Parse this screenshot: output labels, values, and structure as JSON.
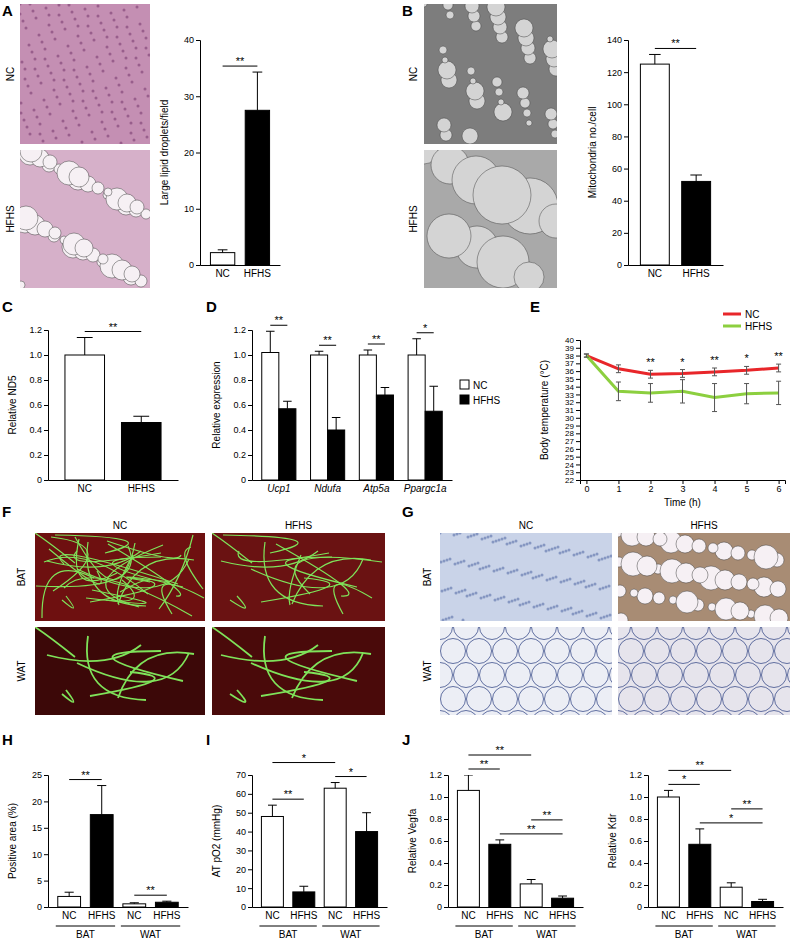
{
  "chart_data": [
    {
      "panel": "A",
      "type": "bar",
      "ylabel": "Large lipid droplets/field",
      "categories": [
        "NC",
        "HFHS"
      ],
      "values": [
        2.2,
        27.5
      ],
      "errors": [
        0.5,
        6.8
      ],
      "colors": [
        "#ffffff",
        "#000000"
      ],
      "ylim": [
        0,
        40
      ],
      "yticks": [
        0,
        10,
        20,
        30,
        40
      ],
      "annotations": [
        {
          "text": "**",
          "from": 0,
          "to": 1
        }
      ]
    },
    {
      "panel": "B",
      "type": "bar",
      "ylabel": "Mitochondria no./cell",
      "categories": [
        "NC",
        "HFHS"
      ],
      "values": [
        125,
        52
      ],
      "errors": [
        6,
        4
      ],
      "colors": [
        "#ffffff",
        "#000000"
      ],
      "ylim": [
        0,
        140
      ],
      "yticks": [
        0,
        20,
        40,
        60,
        80,
        100,
        120,
        140
      ],
      "annotations": [
        {
          "text": "**",
          "from": 0,
          "to": 1
        }
      ]
    },
    {
      "panel": "C",
      "type": "bar",
      "ylabel": "Relative ND5",
      "categories": [
        "NC",
        "HFHS"
      ],
      "values": [
        1.0,
        0.46
      ],
      "errors": [
        0.14,
        0.05
      ],
      "colors": [
        "#ffffff",
        "#000000"
      ],
      "ylim": [
        0,
        1.2
      ],
      "yticks": [
        0,
        0.2,
        0.4,
        0.6,
        0.8,
        {
          "value": 1,
          "label": "1.0"
        },
        1.2
      ],
      "annotations": [
        {
          "text": "**",
          "from": 0,
          "to": 1
        }
      ]
    },
    {
      "panel": "D",
      "type": "bar",
      "ylabel": "Relative expression",
      "categories": [
        "Ucp1",
        "Ndufa",
        "Atp5a",
        "Ppargc1a"
      ],
      "series": [
        {
          "name": "NC",
          "color": "#ffffff",
          "values": [
            1.02,
            1.0,
            1.0,
            1.0
          ],
          "errors": [
            0.17,
            0.03,
            0.04,
            0.13
          ]
        },
        {
          "name": "HFHS",
          "color": "#000000",
          "values": [
            0.57,
            0.4,
            0.68,
            0.55
          ],
          "errors": [
            0.06,
            0.1,
            0.06,
            0.2
          ]
        }
      ],
      "ylim": [
        0,
        1.2
      ],
      "yticks": [
        0,
        0.2,
        0.4,
        0.6,
        0.8,
        {
          "value": 1,
          "label": "1.0"
        },
        1.2
      ],
      "legend": "right",
      "annotations": [
        {
          "text": "**",
          "category": 0
        },
        {
          "text": "**",
          "category": 1
        },
        {
          "text": "**",
          "category": 2
        },
        {
          "text": "*",
          "category": 3
        }
      ]
    },
    {
      "panel": "E",
      "type": "line",
      "ylabel": "Body temperature (°C)",
      "xlabel": "Time (h)",
      "x": [
        0,
        1,
        2,
        3,
        4,
        5,
        6
      ],
      "series": [
        {
          "name": "NC",
          "color": "#e8262a",
          "values": [
            38,
            36.3,
            35.6,
            35.7,
            35.9,
            36.1,
            36.4
          ],
          "errors": [
            0.2,
            0.5,
            0.5,
            0.5,
            0.5,
            0.5,
            0.5
          ]
        },
        {
          "name": "HFHS",
          "color": "#8ccf3f",
          "values": [
            38,
            33.4,
            33.2,
            33.4,
            32.6,
            33.1,
            33.2
          ],
          "errors": [
            0.2,
            1.2,
            1.2,
            1.5,
            1.8,
            1.3,
            1.5
          ]
        }
      ],
      "xlim": [
        -0.2,
        6.2
      ],
      "xticks": [
        0,
        1,
        2,
        3,
        4,
        5,
        6
      ],
      "ylim": [
        22,
        40
      ],
      "yticks": [
        22,
        23,
        24,
        25,
        26,
        27,
        28,
        29,
        30,
        31,
        32,
        33,
        34,
        35,
        36,
        37,
        38,
        39,
        40
      ],
      "legend": "top right",
      "annotations": [
        {
          "text": "**",
          "x": 2
        },
        {
          "text": "*",
          "x": 3
        },
        {
          "text": "**",
          "x": 4
        },
        {
          "text": "*",
          "x": 5
        },
        {
          "text": "**",
          "x": 6
        }
      ]
    },
    {
      "panel": "H",
      "type": "bar",
      "ylabel": "Positive area (%)",
      "categories": [
        "NC",
        "HFHS",
        "NC",
        "HFHS"
      ],
      "groups": [
        "BAT",
        "WAT"
      ],
      "values": [
        2,
        17.5,
        0.6,
        0.9
      ],
      "errors": [
        0.8,
        5.5,
        0.2,
        0.2
      ],
      "colors": [
        "#ffffff",
        "#000000",
        "#ffffff",
        "#000000"
      ],
      "ylim": [
        0,
        25
      ],
      "yticks": [
        0,
        5,
        10,
        15,
        20,
        25
      ],
      "annotations": [
        {
          "text": "**",
          "from": 0,
          "to": 1
        },
        {
          "text": "**",
          "from": 2,
          "to": 3
        }
      ]
    },
    {
      "panel": "I",
      "type": "bar",
      "ylabel": "AT pO2 (mmHg)",
      "categories": [
        "NC",
        "HFHS",
        "NC",
        "HFHS"
      ],
      "groups": [
        "BAT",
        "WAT"
      ],
      "values": [
        48,
        8,
        63,
        40
      ],
      "errors": [
        6,
        3,
        3,
        10
      ],
      "colors": [
        "#ffffff",
        "#000000",
        "#ffffff",
        "#000000"
      ],
      "ylim": [
        0,
        70
      ],
      "yticks": [
        0,
        10,
        20,
        30,
        40,
        50,
        60,
        70
      ],
      "annotations": [
        {
          "text": "**",
          "from": 0,
          "to": 1
        },
        {
          "text": "*",
          "from": 2,
          "to": 3
        },
        {
          "text": "*",
          "from": 0,
          "to": 2
        }
      ]
    },
    {
      "panel": "J",
      "type": "bar",
      "ylabel": "Relative Vegfa",
      "categories": [
        "NC",
        "HFHS",
        "NC",
        "HFHS"
      ],
      "groups": [
        "BAT",
        "WAT"
      ],
      "values": [
        1.06,
        0.57,
        0.21,
        0.08
      ],
      "errors": [
        0.14,
        0.04,
        0.04,
        0.02
      ],
      "colors": [
        "#ffffff",
        "#000000",
        "#ffffff",
        "#000000"
      ],
      "ylim": [
        0,
        1.2
      ],
      "yticks": [
        0,
        0.2,
        0.4,
        0.6,
        0.8,
        {
          "value": 1,
          "label": "1.0"
        },
        1.2
      ],
      "annotations": [
        {
          "text": "**",
          "from": 1,
          "to": 3
        },
        {
          "text": "**",
          "from": 0,
          "to": 1
        },
        {
          "text": "**",
          "from": 2,
          "to": 3
        },
        {
          "text": "**",
          "from": 0,
          "to": 2
        }
      ]
    },
    {
      "type": "bar",
      "ylabel": "Relative Kdr",
      "categories": [
        "NC",
        "HFHS",
        "NC",
        "HFHS"
      ],
      "groups": [
        "BAT",
        "WAT"
      ],
      "values": [
        1.0,
        0.57,
        0.18,
        0.05
      ],
      "errors": [
        0.06,
        0.14,
        0.04,
        0.02
      ],
      "colors": [
        "#ffffff",
        "#000000",
        "#ffffff",
        "#000000"
      ],
      "ylim": [
        0,
        1.2
      ],
      "yticks": [
        0,
        0.2,
        0.4,
        0.6,
        0.8,
        {
          "value": 1,
          "label": "1.0"
        },
        1.2
      ],
      "annotations": [
        {
          "text": "*",
          "from": 1,
          "to": 3
        },
        {
          "text": "*",
          "from": 0,
          "to": 1
        },
        {
          "text": "**",
          "from": 2,
          "to": 3
        },
        {
          "text": "**",
          "from": 0,
          "to": 2
        }
      ]
    }
  ],
  "images": [
    {
      "rows": [
        "NC",
        "HFHS"
      ]
    },
    {
      "rows": [
        "NC",
        "HFHS"
      ]
    },
    {
      "panel": "F",
      "columns": [
        "NC",
        "HFHS"
      ],
      "rows": [
        "BAT",
        "WAT"
      ]
    },
    {
      "panel": "G",
      "columns": [
        "NC",
        "HFHS"
      ],
      "rows": [
        "BAT",
        "WAT"
      ]
    }
  ]
}
